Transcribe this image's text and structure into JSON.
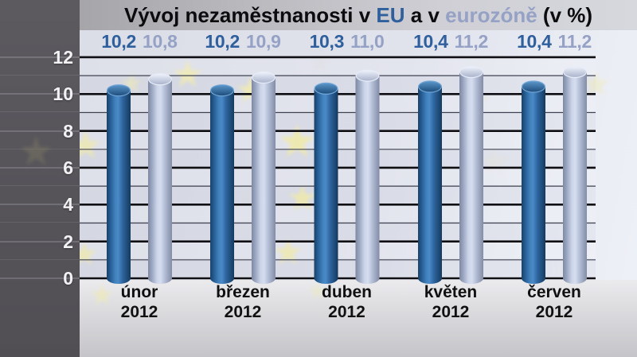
{
  "title": {
    "part1": "Vývoj nezaměstnanosti v ",
    "eu_label": "EU",
    "part2": " a v ",
    "eurozone_label": "eurozóně",
    "part3": " (v %)"
  },
  "colors": {
    "eu_bar": "#2e6ba6",
    "eu_text": "#2f609d",
    "eurozone_bar": "#b9c3da",
    "eurozone_text": "#95a2c5",
    "title_text": "#0c0c0e",
    "axis_text": "#f2f2f4",
    "gridline_major": "#0e0e13",
    "gridline_minor": "#3f4250"
  },
  "background": {
    "watermark": "eu-flag-stars",
    "star_color": "#f0eaa8"
  },
  "chart_data": {
    "type": "bar",
    "title": "Vývoj nezaměstnanosti v EU a v eurozóně (v %)",
    "categories": [
      "únor 2012",
      "březen 2012",
      "duben 2012",
      "květen 2012",
      "červen 2012"
    ],
    "category_lines": [
      [
        "únor",
        "2012"
      ],
      [
        "březen",
        "2012"
      ],
      [
        "duben",
        "2012"
      ],
      [
        "květen",
        "2012"
      ],
      [
        "červen",
        "2012"
      ]
    ],
    "series": [
      {
        "name": "EU",
        "values": [
          10.2,
          10.2,
          10.3,
          10.4,
          10.4
        ],
        "labels": [
          "10,2",
          "10,2",
          "10,3",
          "10,4",
          "10,4"
        ]
      },
      {
        "name": "eurozóna",
        "values": [
          10.8,
          10.9,
          11.0,
          11.2,
          11.2
        ],
        "labels": [
          "10,8",
          "10,9",
          "11,0",
          "11,2",
          "11,2"
        ]
      }
    ],
    "xlabel": "",
    "ylabel": "",
    "ylim": [
      0,
      12
    ],
    "y_ticks": [
      0,
      2,
      4,
      6,
      8,
      10,
      12
    ],
    "y_tick_labels": [
      "0",
      "2",
      "4",
      "6",
      "8",
      "10",
      "12"
    ],
    "grid": true,
    "legend_position": "in-title",
    "value_labels_position": "row-above-plot",
    "bar_style": "3d-cylinder"
  }
}
